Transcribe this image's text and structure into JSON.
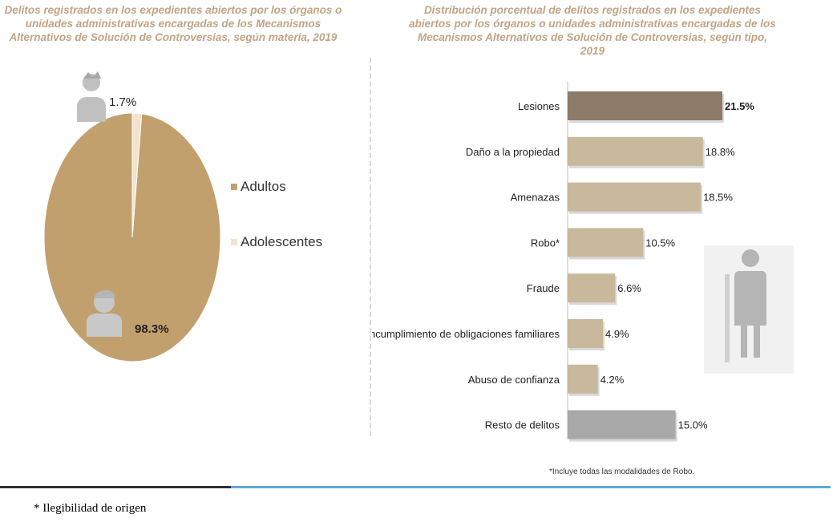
{
  "left_panel": {
    "title": "Delitos registrados en los expedientes abiertos por los órganos o unidades administrativas encargadas de los Mecanismos Alternativos de Solución de Controversias, según materia, 2019"
  },
  "right_panel": {
    "title": "Distribución porcentual de delitos registrados en los expedientes abiertos por los órganos o unidades administrativas encargadas de los Mecanismos Alternativos de Solución de Controversias, según tipo, 2019",
    "footnote": "*Incluye todas las modalidades de Robo."
  },
  "caption": "* Ilegibilidad de origen",
  "colors": {
    "title": "#bfa585",
    "adultos": "#c2a06e",
    "adolescentes": "#f3e3cc",
    "bar_highlight": "#8b7b68",
    "bar_main": "#c8b89c",
    "bar_other": "#a9a9a9",
    "icon": "#c0c0c0"
  },
  "chart_data": [
    {
      "type": "pie",
      "slices": [
        {
          "label": "Adultos",
          "value": 98.3,
          "display": "98.3%"
        },
        {
          "label": "Adolescentes",
          "value": 1.7,
          "display": "1.7%"
        }
      ],
      "legend": [
        "Adultos",
        "Adolescentes"
      ],
      "legend_position": "right"
    },
    {
      "type": "bar",
      "orientation": "horizontal",
      "categories": [
        "Lesiones",
        "Daño a la propiedad",
        "Amenazas",
        "Robo*",
        "Fraude",
        "Incumplimiento de obligaciones familiares",
        "Abuso de confianza",
        "Resto de delitos"
      ],
      "values": [
        21.5,
        18.8,
        18.5,
        10.5,
        6.6,
        4.9,
        4.2,
        15.0
      ],
      "labels": [
        "21.5%",
        "18.8%",
        "18.5%",
        "10.5%",
        "6.6%",
        "4.9%",
        "4.2%",
        "15.0%"
      ],
      "xlim": [
        0,
        21.5
      ],
      "grid": false
    }
  ]
}
